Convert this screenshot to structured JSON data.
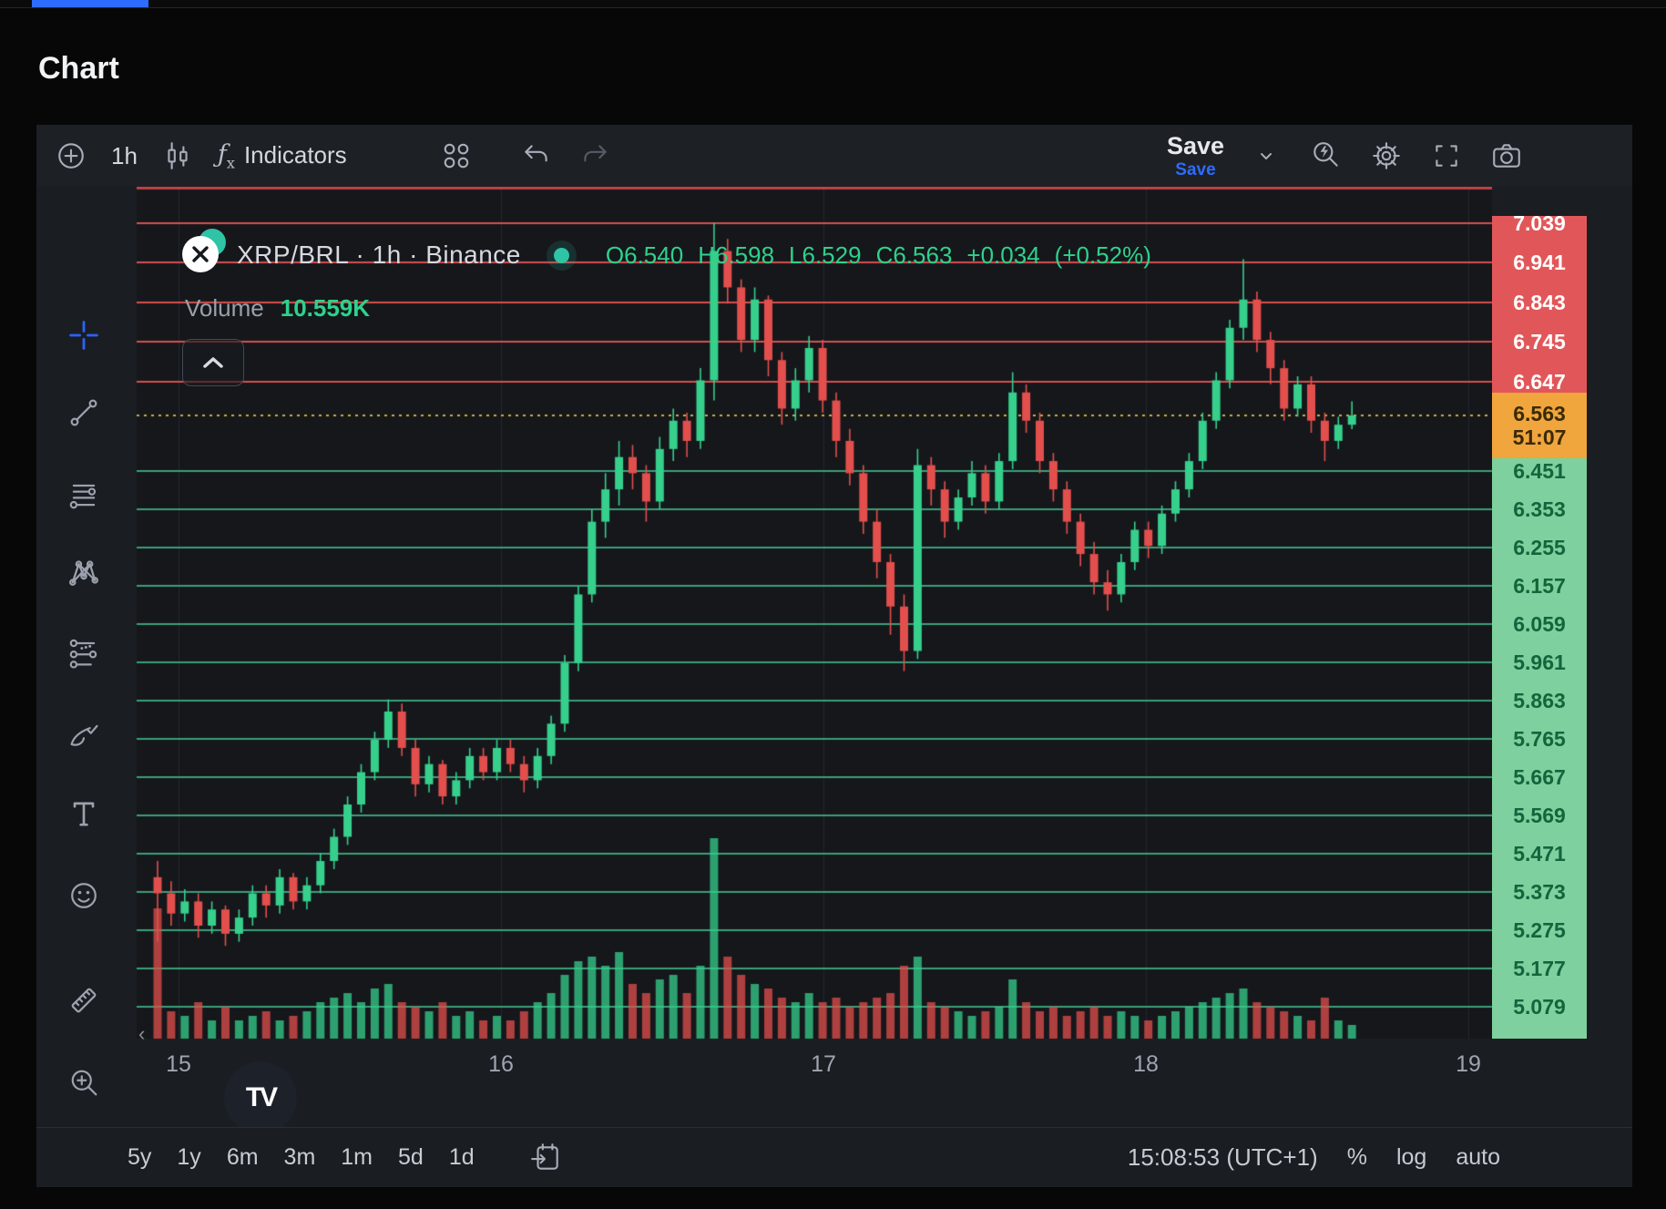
{
  "page": {
    "title": "Chart"
  },
  "toolbar": {
    "interval": "1h",
    "indicators_label": "Indicators",
    "save_label": "Save",
    "save_sub_label": "Save"
  },
  "header": {
    "symbol": "XRP/BRL · 1h · Binance",
    "ohlc": [
      "O6.540",
      "H6.598",
      "L6.529",
      "C6.563",
      "+0.034",
      "(+0.52%)"
    ],
    "volume_label": "Volume",
    "volume_value": "10.559K"
  },
  "price_scale": {
    "red_ticks": [
      "7.039",
      "6.941",
      "6.843",
      "6.745",
      "6.647"
    ],
    "current_price": "6.563",
    "countdown": "51:07",
    "green_ticks": [
      "6.451",
      "6.353",
      "6.255",
      "6.157",
      "6.059",
      "5.961",
      "5.863",
      "5.765",
      "5.667",
      "5.569",
      "5.471",
      "5.373",
      "5.275",
      "5.177",
      "5.079"
    ],
    "red_bg": "#e15759",
    "yellow_bg": "#f0a53d",
    "green_bg": "#7ed09e"
  },
  "time_axis": {
    "labels": [
      "15",
      "16",
      "17",
      "18",
      "19"
    ]
  },
  "bottom_toolbar": {
    "ranges": [
      "5y",
      "1y",
      "6m",
      "3m",
      "1m",
      "5d",
      "1d"
    ],
    "clock": "15:08:53 (UTC+1)",
    "percent_label": "%",
    "log_label": "log",
    "auto_label": "auto"
  },
  "left_tools": [
    "crosshair",
    "trend-line",
    "fib-retracement",
    "xabcd-pattern",
    "projection",
    "brush",
    "text",
    "emoji",
    "ruler",
    "zoom-in",
    "magnet"
  ],
  "chart_data": {
    "type": "candlestick",
    "symbol": "XRP/BRL",
    "interval": "1h",
    "exchange": "Binance",
    "title": "XRP/BRL · 1h · Binance",
    "open": 6.54,
    "high": 6.598,
    "low": 6.529,
    "close": 6.563,
    "change": 0.034,
    "change_pct": 0.52,
    "volume_display": "10.559K",
    "x_labels": [
      "15",
      "16",
      "17",
      "18",
      "19"
    ],
    "y_ticks": [
      7.039,
      6.941,
      6.843,
      6.745,
      6.647,
      6.563,
      6.451,
      6.353,
      6.255,
      6.157,
      6.059,
      5.961,
      5.863,
      5.765,
      5.667,
      5.569,
      5.471,
      5.373,
      5.275,
      5.177,
      5.079
    ],
    "current_price": 6.563,
    "countdown": "51:07",
    "colors": {
      "up": "#36cf8c",
      "down": "#e24f4c",
      "red_level_line": "#d6504f",
      "green_level_line": "#3aa078",
      "current_line": "#c9ae3d",
      "grid": "#232830"
    },
    "candles": [
      [
        5.42,
        5.46,
        5.26,
        5.38,
        14.3
      ],
      [
        5.38,
        5.41,
        5.3,
        5.33,
        3.0
      ],
      [
        5.33,
        5.39,
        5.31,
        5.36,
        2.5
      ],
      [
        5.36,
        5.38,
        5.27,
        5.3,
        4.0
      ],
      [
        5.3,
        5.36,
        5.28,
        5.34,
        2.0
      ],
      [
        5.34,
        5.35,
        5.25,
        5.28,
        3.5
      ],
      [
        5.28,
        5.34,
        5.26,
        5.32,
        2.0
      ],
      [
        5.32,
        5.4,
        5.3,
        5.38,
        2.5
      ],
      [
        5.38,
        5.4,
        5.32,
        5.35,
        3.0
      ],
      [
        5.35,
        5.44,
        5.33,
        5.42,
        2.0
      ],
      [
        5.42,
        5.43,
        5.34,
        5.36,
        2.5
      ],
      [
        5.36,
        5.42,
        5.34,
        5.4,
        3.0
      ],
      [
        5.4,
        5.48,
        5.38,
        5.46,
        4.0
      ],
      [
        5.46,
        5.54,
        5.44,
        5.52,
        4.5
      ],
      [
        5.52,
        5.62,
        5.5,
        5.6,
        5.0
      ],
      [
        5.6,
        5.7,
        5.58,
        5.68,
        4.0
      ],
      [
        5.68,
        5.78,
        5.66,
        5.76,
        5.5
      ],
      [
        5.76,
        5.86,
        5.74,
        5.83,
        6.0
      ],
      [
        5.83,
        5.85,
        5.72,
        5.74,
        4.0
      ],
      [
        5.74,
        5.76,
        5.62,
        5.65,
        3.5
      ],
      [
        5.65,
        5.72,
        5.63,
        5.7,
        3.0
      ],
      [
        5.7,
        5.71,
        5.6,
        5.62,
        4.0
      ],
      [
        5.62,
        5.68,
        5.6,
        5.66,
        2.5
      ],
      [
        5.66,
        5.74,
        5.64,
        5.72,
        3.0
      ],
      [
        5.72,
        5.74,
        5.66,
        5.68,
        2.0
      ],
      [
        5.68,
        5.76,
        5.66,
        5.74,
        2.5
      ],
      [
        5.74,
        5.76,
        5.68,
        5.7,
        2.0
      ],
      [
        5.7,
        5.72,
        5.63,
        5.66,
        3.0
      ],
      [
        5.66,
        5.74,
        5.64,
        5.72,
        4.0
      ],
      [
        5.72,
        5.82,
        5.7,
        5.8,
        5.0
      ],
      [
        5.8,
        5.97,
        5.78,
        5.95,
        7.0
      ],
      [
        5.95,
        6.14,
        5.93,
        6.12,
        8.5
      ],
      [
        6.12,
        6.33,
        6.1,
        6.3,
        9.0
      ],
      [
        6.3,
        6.42,
        6.26,
        6.38,
        8.0
      ],
      [
        6.38,
        6.5,
        6.34,
        6.46,
        9.5
      ],
      [
        6.46,
        6.49,
        6.38,
        6.42,
        6.0
      ],
      [
        6.42,
        6.44,
        6.3,
        6.35,
        5.0
      ],
      [
        6.35,
        6.51,
        6.33,
        6.48,
        6.5
      ],
      [
        6.48,
        6.58,
        6.45,
        6.55,
        7.0
      ],
      [
        6.55,
        6.57,
        6.46,
        6.5,
        5.0
      ],
      [
        6.5,
        6.68,
        6.48,
        6.65,
        8.0
      ],
      [
        6.65,
        7.04,
        6.6,
        6.97,
        22.0
      ],
      [
        6.97,
        7.0,
        6.84,
        6.88,
        9.0
      ],
      [
        6.88,
        6.9,
        6.72,
        6.75,
        7.0
      ],
      [
        6.75,
        6.88,
        6.72,
        6.85,
        6.0
      ],
      [
        6.85,
        6.86,
        6.66,
        6.7,
        5.5
      ],
      [
        6.7,
        6.72,
        6.54,
        6.58,
        4.5
      ],
      [
        6.58,
        6.68,
        6.55,
        6.65,
        4.0
      ],
      [
        6.65,
        6.76,
        6.62,
        6.73,
        5.0
      ],
      [
        6.73,
        6.75,
        6.57,
        6.6,
        4.0
      ],
      [
        6.6,
        6.62,
        6.46,
        6.5,
        4.5
      ],
      [
        6.5,
        6.53,
        6.39,
        6.42,
        3.5
      ],
      [
        6.42,
        6.44,
        6.27,
        6.3,
        4.0
      ],
      [
        6.3,
        6.33,
        6.16,
        6.2,
        4.5
      ],
      [
        6.2,
        6.22,
        6.02,
        6.09,
        5.0
      ],
      [
        6.09,
        6.12,
        5.93,
        5.98,
        8.0
      ],
      [
        5.98,
        6.48,
        5.96,
        6.44,
        9.0
      ],
      [
        6.44,
        6.46,
        6.34,
        6.38,
        4.0
      ],
      [
        6.38,
        6.4,
        6.26,
        6.3,
        3.5
      ],
      [
        6.3,
        6.38,
        6.28,
        6.36,
        3.0
      ],
      [
        6.36,
        6.45,
        6.34,
        6.42,
        2.5
      ],
      [
        6.42,
        6.44,
        6.32,
        6.35,
        3.0
      ],
      [
        6.35,
        6.47,
        6.33,
        6.45,
        3.5
      ],
      [
        6.45,
        6.67,
        6.43,
        6.62,
        6.5
      ],
      [
        6.62,
        6.64,
        6.52,
        6.55,
        4.0
      ],
      [
        6.55,
        6.57,
        6.42,
        6.45,
        3.0
      ],
      [
        6.45,
        6.47,
        6.35,
        6.38,
        3.5
      ],
      [
        6.38,
        6.4,
        6.27,
        6.3,
        2.5
      ],
      [
        6.3,
        6.32,
        6.19,
        6.22,
        3.0
      ],
      [
        6.22,
        6.25,
        6.12,
        6.15,
        3.5
      ],
      [
        6.15,
        6.18,
        6.08,
        6.12,
        2.5
      ],
      [
        6.12,
        6.22,
        6.1,
        6.2,
        3.0
      ],
      [
        6.2,
        6.3,
        6.18,
        6.28,
        2.5
      ],
      [
        6.28,
        6.3,
        6.21,
        6.24,
        2.0
      ],
      [
        6.24,
        6.34,
        6.22,
        6.32,
        2.5
      ],
      [
        6.32,
        6.4,
        6.3,
        6.38,
        3.0
      ],
      [
        6.38,
        6.47,
        6.36,
        6.45,
        3.5
      ],
      [
        6.45,
        6.57,
        6.43,
        6.55,
        4.0
      ],
      [
        6.55,
        6.67,
        6.53,
        6.65,
        4.5
      ],
      [
        6.65,
        6.8,
        6.63,
        6.78,
        5.0
      ],
      [
        6.78,
        6.95,
        6.75,
        6.85,
        5.5
      ],
      [
        6.85,
        6.87,
        6.72,
        6.75,
        4.0
      ],
      [
        6.75,
        6.77,
        6.64,
        6.68,
        3.5
      ],
      [
        6.68,
        6.7,
        6.55,
        6.58,
        3.0
      ],
      [
        6.58,
        6.66,
        6.56,
        6.64,
        2.5
      ],
      [
        6.64,
        6.66,
        6.52,
        6.55,
        2.0
      ],
      [
        6.55,
        6.57,
        6.45,
        6.5,
        4.5
      ],
      [
        6.5,
        6.56,
        6.48,
        6.54,
        2.0
      ],
      [
        6.54,
        6.598,
        6.529,
        6.563,
        1.5
      ]
    ]
  }
}
